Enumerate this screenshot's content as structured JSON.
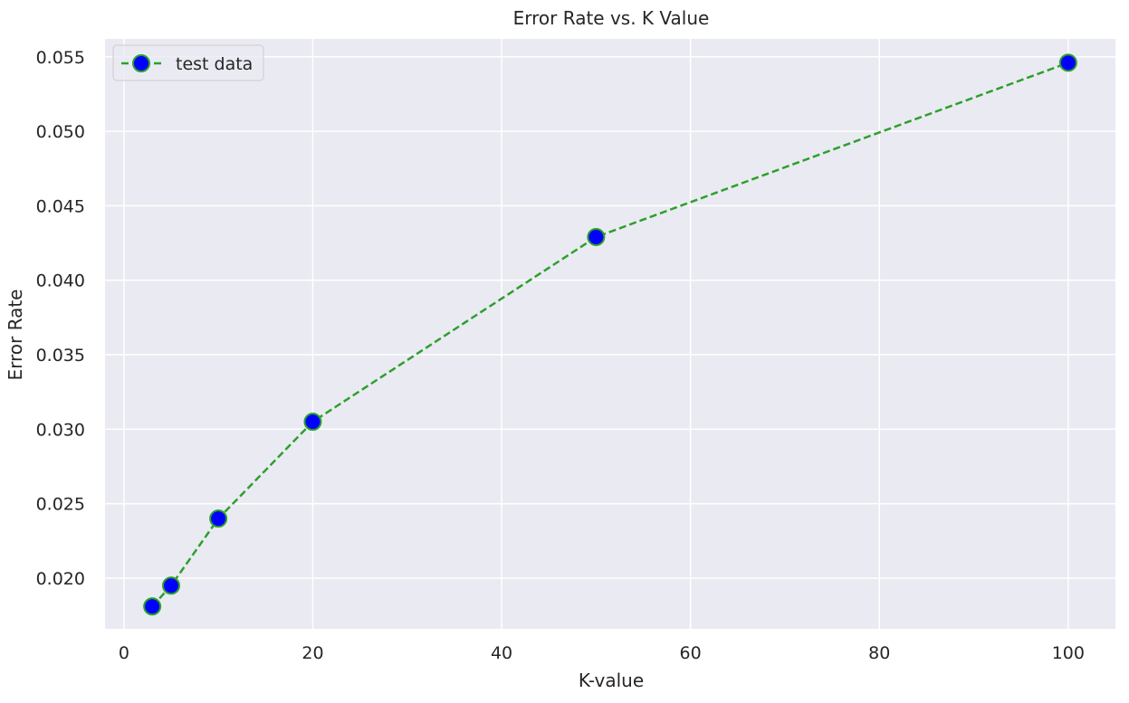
{
  "chart_data": {
    "type": "line",
    "title": "Error Rate vs. K Value",
    "xlabel": "K-value",
    "ylabel": "Error Rate",
    "xlim": [
      -2,
      105
    ],
    "ylim": [
      0.0166,
      0.0562
    ],
    "xticks": [
      0,
      20,
      40,
      60,
      80,
      100
    ],
    "xtick_labels": [
      "0",
      "20",
      "40",
      "60",
      "80",
      "100"
    ],
    "yticks": [
      0.02,
      0.025,
      0.03,
      0.035,
      0.04,
      0.045,
      0.05,
      0.055
    ],
    "ytick_labels": [
      "0.020",
      "0.025",
      "0.030",
      "0.035",
      "0.040",
      "0.045",
      "0.050",
      "0.055"
    ],
    "grid": true,
    "legend_position": "top-left",
    "series": [
      {
        "name": "test data",
        "x": [
          3,
          5,
          10,
          20,
          50,
          100
        ],
        "y": [
          0.0181,
          0.0195,
          0.024,
          0.0305,
          0.0429,
          0.0546
        ],
        "line_color": "#2ca02c",
        "line_style": "dashed",
        "marker_face": "#0000ff",
        "marker_edge": "#2ca02c"
      }
    ],
    "colors": {
      "plot_background": "#eaeaf2",
      "grid": "#ffffff"
    }
  }
}
